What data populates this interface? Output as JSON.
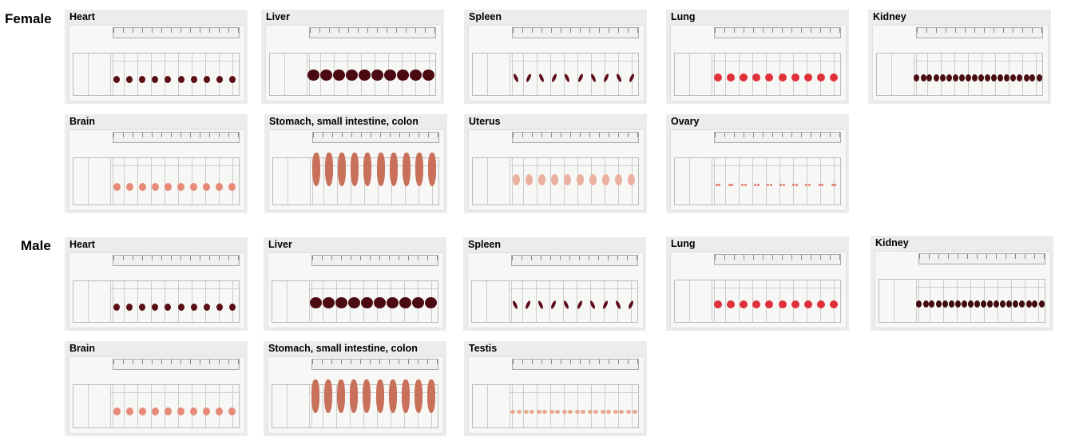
{
  "groups": [
    {
      "label": "Female",
      "panels": [
        {
          "title": "Heart",
          "color": "#5a0f14",
          "shape": "heart"
        },
        {
          "title": "Liver",
          "color": "#4b0a12",
          "shape": "liver"
        },
        {
          "title": "Spleen",
          "color": "#5c0c18",
          "shape": "spleen"
        },
        {
          "title": "Lung",
          "color": "#e0303a",
          "shape": "lung"
        },
        {
          "title": "Kidney",
          "color": "#4a0d12",
          "shape": "kidney"
        },
        {
          "title": "Brain",
          "color": "#e88a78",
          "shape": "brain"
        },
        {
          "title": "Stomach, small intestine, colon",
          "color": "#c8705a",
          "shape": "gut"
        },
        {
          "title": "Uterus",
          "color": "#eab0a0",
          "shape": "uterus"
        },
        {
          "title": "Ovary",
          "color": "#e27a6c",
          "shape": "ovary"
        }
      ]
    },
    {
      "label": "Male",
      "panels": [
        {
          "title": "Heart",
          "color": "#5a0f14",
          "shape": "heart"
        },
        {
          "title": "Liver",
          "color": "#4b0a12",
          "shape": "liver"
        },
        {
          "title": "Spleen",
          "color": "#5c0c18",
          "shape": "spleen"
        },
        {
          "title": "Lung",
          "color": "#e0303a",
          "shape": "lung"
        },
        {
          "title": "Kidney",
          "color": "#3f0a10",
          "shape": "kidney"
        },
        {
          "title": "Brain",
          "color": "#e88a78",
          "shape": "brain"
        },
        {
          "title": "Stomach, small intestine, colon",
          "color": "#c8705a",
          "shape": "gut"
        },
        {
          "title": "Testis",
          "color": "#e8a890",
          "shape": "testis"
        }
      ]
    }
  ]
}
